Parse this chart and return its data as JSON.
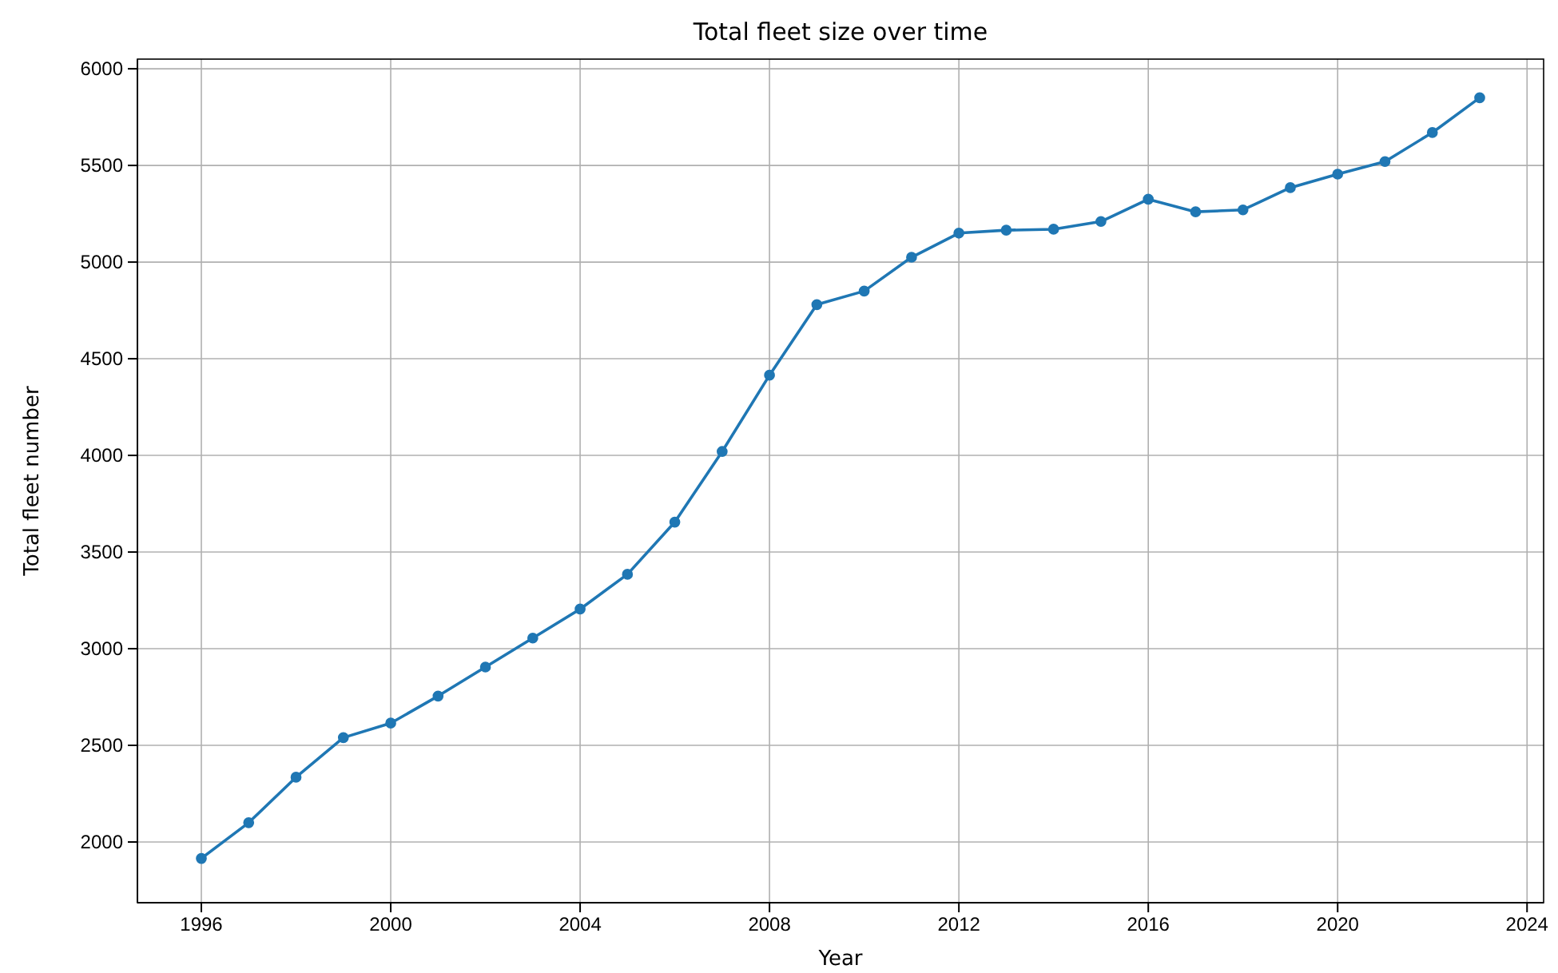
{
  "chart_data": {
    "type": "line",
    "title": "Total fleet size over time",
    "xlabel": "Year",
    "ylabel": "Total fleet number",
    "x": [
      1996,
      1997,
      1998,
      1999,
      2000,
      2001,
      2002,
      2003,
      2004,
      2005,
      2006,
      2007,
      2008,
      2009,
      2010,
      2011,
      2012,
      2013,
      2014,
      2015,
      2016,
      2017,
      2018,
      2019,
      2020,
      2021,
      2022,
      2023
    ],
    "series": [
      {
        "color": "#1f77b4",
        "values": [
          1915,
          2100,
          2335,
          2540,
          2615,
          2755,
          2905,
          3055,
          3205,
          3385,
          3655,
          4020,
          4415,
          4780,
          4850,
          5025,
          5150,
          5165,
          5170,
          5210,
          5325,
          5260,
          5270,
          5385,
          5455,
          5520,
          5670,
          5850
        ]
      }
    ],
    "xlim": [
      1994.65,
      2024.35
    ],
    "xticks": [
      1996,
      2000,
      2004,
      2008,
      2012,
      2016,
      2020,
      2024
    ],
    "ylim": [
      1686,
      6050
    ],
    "yticks": [
      2000,
      2500,
      3000,
      3500,
      4000,
      4500,
      5000,
      5500,
      6000
    ],
    "grid": true,
    "marker": "circle",
    "line_style": "solid"
  }
}
